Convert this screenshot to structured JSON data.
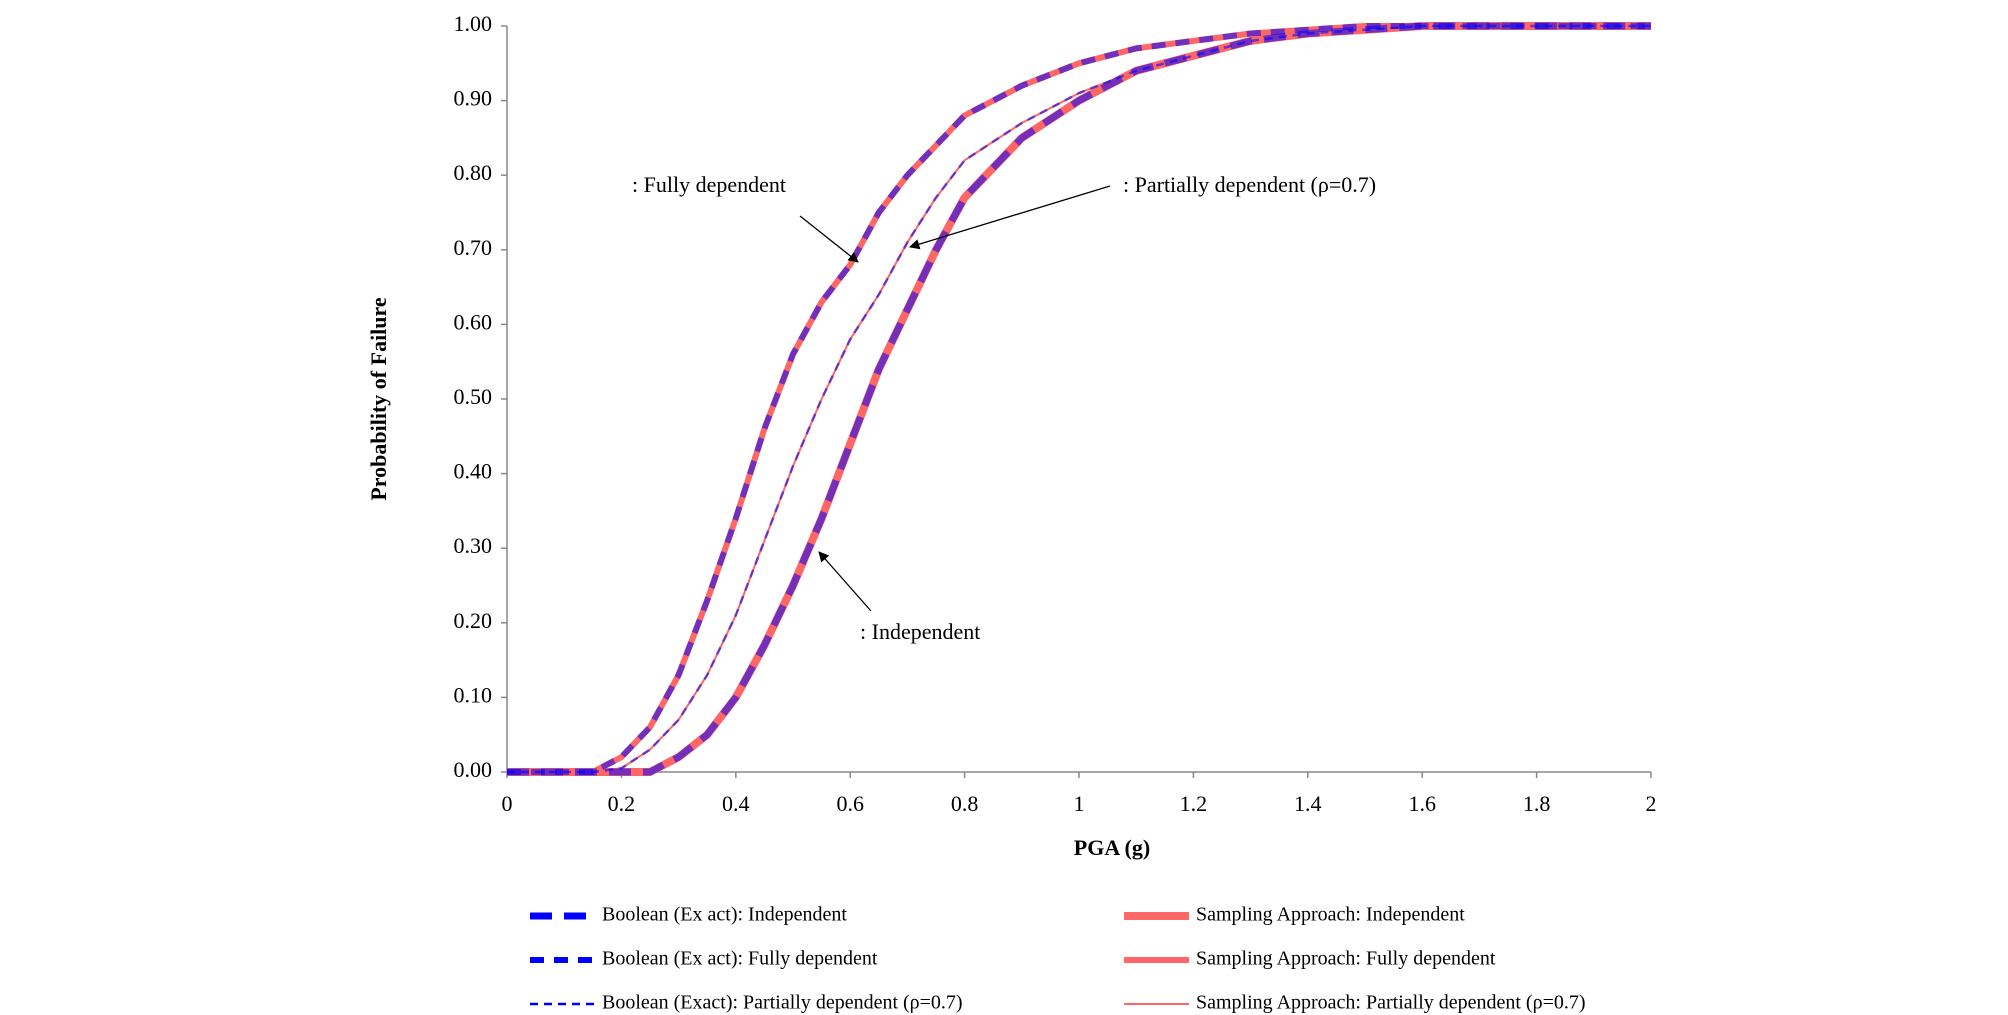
{
  "chart_data": {
    "type": "line",
    "x_label": "PGA (g)",
    "y_label": "Probability  of Failure",
    "x": [
      0,
      0.1,
      0.15,
      0.2,
      0.25,
      0.3,
      0.35,
      0.4,
      0.45,
      0.5,
      0.55,
      0.6,
      0.65,
      0.7,
      0.75,
      0.8,
      0.9,
      1.0,
      1.1,
      1.2,
      1.3,
      1.4,
      1.5,
      1.6,
      1.8,
      2.0
    ],
    "series": [
      {
        "name": "Boolean (Ex act): Independent",
        "color": "#0000ff",
        "dashed": true,
        "values": [
          0,
          0,
          0,
          0,
          0,
          0.02,
          0.05,
          0.1,
          0.17,
          0.25,
          0.34,
          0.44,
          0.54,
          0.62,
          0.7,
          0.77,
          0.85,
          0.9,
          0.94,
          0.96,
          0.98,
          0.99,
          0.995,
          1,
          1,
          1
        ]
      },
      {
        "name": "Boolean (Ex act): Fully dependent",
        "color": "#0000ff",
        "dashed": true,
        "values": [
          0,
          0,
          0,
          0.02,
          0.06,
          0.13,
          0.23,
          0.34,
          0.46,
          0.56,
          0.63,
          0.68,
          0.75,
          0.8,
          0.84,
          0.88,
          0.92,
          0.95,
          0.97,
          0.98,
          0.99,
          0.995,
          1,
          1,
          1,
          1
        ]
      },
      {
        "name": "Boolean (Exact):  Partially dependent (ρ=0.7)",
        "color": "#0000ff",
        "dashed": true,
        "values": [
          0,
          0,
          0,
          0.005,
          0.03,
          0.07,
          0.13,
          0.21,
          0.31,
          0.41,
          0.5,
          0.58,
          0.64,
          0.71,
          0.77,
          0.82,
          0.87,
          0.91,
          0.94,
          0.96,
          0.98,
          0.99,
          0.995,
          1,
          1,
          1
        ]
      },
      {
        "name": "Sampling Approach: Independent",
        "color": "#ff6666",
        "dashed": false,
        "values": [
          0,
          0,
          0,
          0,
          0,
          0.02,
          0.05,
          0.1,
          0.17,
          0.25,
          0.34,
          0.44,
          0.54,
          0.62,
          0.7,
          0.77,
          0.85,
          0.9,
          0.94,
          0.96,
          0.98,
          0.99,
          0.995,
          1,
          1,
          1
        ]
      },
      {
        "name": "Sampling Approach: Fully dependent",
        "color": "#ff6666",
        "dashed": false,
        "values": [
          0,
          0,
          0,
          0.02,
          0.06,
          0.13,
          0.23,
          0.34,
          0.46,
          0.56,
          0.63,
          0.68,
          0.75,
          0.8,
          0.84,
          0.88,
          0.92,
          0.95,
          0.97,
          0.98,
          0.99,
          0.995,
          1,
          1,
          1,
          1
        ]
      },
      {
        "name": "Sampling Approach: Partially  dependent (ρ=0.7)",
        "color": "#ff6666",
        "dashed": false,
        "values": [
          0,
          0,
          0,
          0.005,
          0.03,
          0.07,
          0.13,
          0.21,
          0.31,
          0.41,
          0.5,
          0.58,
          0.64,
          0.71,
          0.77,
          0.82,
          0.87,
          0.91,
          0.94,
          0.96,
          0.98,
          0.99,
          0.995,
          1,
          1,
          1
        ]
      }
    ],
    "annotations": [
      ": Fully  dependent",
      ": Partially  dependent (ρ=0.7)",
      ": Independent"
    ],
    "xlim": [
      0,
      2
    ],
    "xticks": [
      0,
      0.2,
      0.4,
      0.6,
      0.8,
      1,
      1.2,
      1.4,
      1.6,
      1.8,
      2
    ],
    "ylim": [
      0,
      1
    ],
    "yticks": [
      {
        "value": 0,
        "label": "0.00"
      },
      {
        "value": 0.1,
        "label": "0.10"
      },
      {
        "value": 0.2,
        "label": "0.20"
      },
      {
        "value": 0.3,
        "label": "0.30"
      },
      {
        "value": 0.4,
        "label": "0.40"
      },
      {
        "value": 0.5,
        "label": "0.50"
      },
      {
        "value": 0.6,
        "label": "0.60"
      },
      {
        "value": 0.7,
        "label": "0.70"
      },
      {
        "value": 0.8,
        "label": "0.80"
      },
      {
        "value": 0.9,
        "label": "0.90"
      },
      {
        "value": 1,
        "label": "1.00"
      }
    ],
    "grid": false,
    "legend": "bottom"
  }
}
